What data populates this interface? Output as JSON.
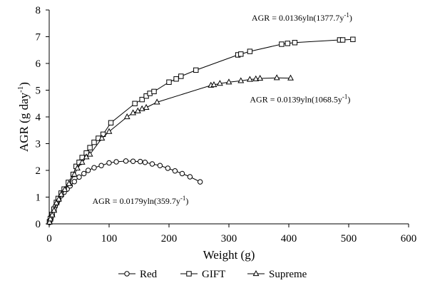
{
  "chart_data": {
    "type": "line",
    "xlabel": "Weight (g)",
    "ylabel_parts": [
      "AGR (g day",
      "-1",
      ")"
    ],
    "xlim": [
      0,
      600
    ],
    "ylim": [
      0,
      8
    ],
    "x_ticks": [
      0,
      100,
      200,
      300,
      400,
      500,
      600
    ],
    "y_ticks": [
      0,
      1,
      2,
      3,
      4,
      5,
      6,
      7,
      8
    ],
    "grid": false,
    "legend_position": "bottom",
    "series": [
      {
        "name": "Red",
        "marker": "circle",
        "color": "#000000",
        "points": [
          [
            0.5,
            0.05
          ],
          [
            1.5,
            0.12
          ],
          [
            3,
            0.2
          ],
          [
            5,
            0.35
          ],
          [
            8,
            0.55
          ],
          [
            10,
            0.65
          ],
          [
            13,
            0.78
          ],
          [
            16,
            0.9
          ],
          [
            20,
            1.05
          ],
          [
            25,
            1.18
          ],
          [
            30,
            1.3
          ],
          [
            35,
            1.42
          ],
          [
            42,
            1.58
          ],
          [
            50,
            1.75
          ],
          [
            58,
            1.88
          ],
          [
            65,
            2.0
          ],
          [
            75,
            2.1
          ],
          [
            87,
            2.18
          ],
          [
            100,
            2.28
          ],
          [
            112,
            2.32
          ],
          [
            128,
            2.35
          ],
          [
            140,
            2.34
          ],
          [
            152,
            2.33
          ],
          [
            160,
            2.3
          ],
          [
            172,
            2.24
          ],
          [
            185,
            2.18
          ],
          [
            198,
            2.08
          ],
          [
            210,
            1.98
          ],
          [
            222,
            1.88
          ],
          [
            235,
            1.76
          ],
          [
            252,
            1.57
          ]
        ]
      },
      {
        "name": "GIFT",
        "marker": "square",
        "color": "#000000",
        "points": [
          [
            0.5,
            0.08
          ],
          [
            2,
            0.2
          ],
          [
            5,
            0.35
          ],
          [
            8,
            0.55
          ],
          [
            12,
            0.8
          ],
          [
            15,
            0.95
          ],
          [
            20,
            1.15
          ],
          [
            25,
            1.3
          ],
          [
            32,
            1.55
          ],
          [
            40,
            1.85
          ],
          [
            45,
            2.15
          ],
          [
            50,
            2.3
          ],
          [
            55,
            2.48
          ],
          [
            62,
            2.65
          ],
          [
            68,
            2.85
          ],
          [
            75,
            3.05
          ],
          [
            82,
            3.2
          ],
          [
            90,
            3.35
          ],
          [
            103,
            3.78
          ],
          [
            143,
            4.5
          ],
          [
            155,
            4.65
          ],
          [
            162,
            4.78
          ],
          [
            168,
            4.88
          ],
          [
            175,
            4.95
          ],
          [
            200,
            5.3
          ],
          [
            212,
            5.42
          ],
          [
            220,
            5.52
          ],
          [
            245,
            5.75
          ],
          [
            315,
            6.32
          ],
          [
            320,
            6.35
          ],
          [
            335,
            6.45
          ],
          [
            388,
            6.72
          ],
          [
            398,
            6.75
          ],
          [
            410,
            6.78
          ],
          [
            485,
            6.88
          ],
          [
            490,
            6.88
          ],
          [
            507,
            6.9
          ]
        ]
      },
      {
        "name": "Supreme",
        "marker": "triangle",
        "color": "#000000",
        "points": [
          [
            0.5,
            0.06
          ],
          [
            2,
            0.18
          ],
          [
            5,
            0.33
          ],
          [
            8,
            0.5
          ],
          [
            12,
            0.78
          ],
          [
            16,
            0.92
          ],
          [
            20,
            1.1
          ],
          [
            26,
            1.28
          ],
          [
            33,
            1.5
          ],
          [
            42,
            1.85
          ],
          [
            47,
            2.08
          ],
          [
            55,
            2.3
          ],
          [
            62,
            2.5
          ],
          [
            68,
            2.6
          ],
          [
            88,
            3.2
          ],
          [
            100,
            3.45
          ],
          [
            130,
            4.0
          ],
          [
            140,
            4.15
          ],
          [
            148,
            4.22
          ],
          [
            155,
            4.3
          ],
          [
            162,
            4.35
          ],
          [
            180,
            4.55
          ],
          [
            270,
            5.18
          ],
          [
            275,
            5.2
          ],
          [
            285,
            5.25
          ],
          [
            300,
            5.3
          ],
          [
            320,
            5.35
          ],
          [
            335,
            5.4
          ],
          [
            345,
            5.42
          ],
          [
            352,
            5.44
          ],
          [
            380,
            5.46
          ],
          [
            403,
            5.45
          ]
        ]
      }
    ],
    "annotations": [
      {
        "text": "AGR = 0.0136yln(1377.7y",
        "sup": "-1",
        "tail": ")",
        "series": "GIFT",
        "x": 338,
        "y": 7.6
      },
      {
        "text": "AGR = 0.0139yln(1068.5y",
        "sup": "-1",
        "tail": ")",
        "series": "Supreme",
        "x": 335,
        "y": 4.55
      },
      {
        "text": "AGR = 0.0179yln(359.7y",
        "sup": "-1",
        "tail": ")",
        "series": "Red",
        "x": 72,
        "y": 0.75
      }
    ]
  }
}
